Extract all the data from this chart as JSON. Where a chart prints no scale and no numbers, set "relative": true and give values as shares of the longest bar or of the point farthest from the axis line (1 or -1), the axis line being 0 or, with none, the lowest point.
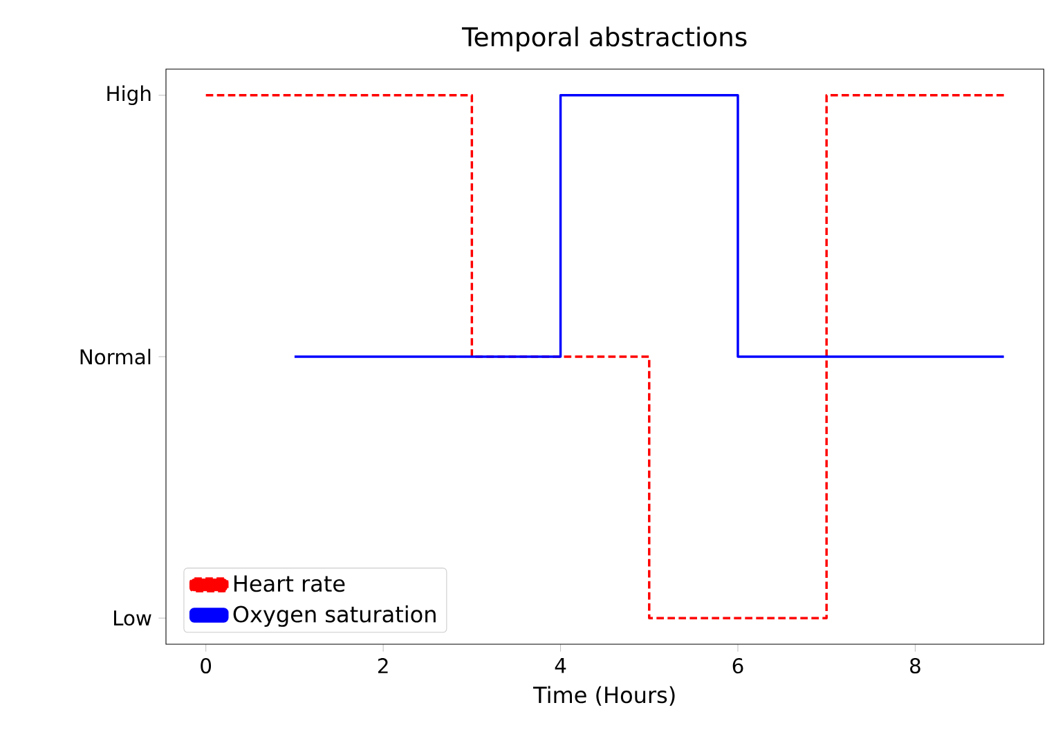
{
  "chart_data": {
    "type": "step",
    "title": "Temporal abstractions",
    "xlabel": "Time (Hours)",
    "xlim": [
      -0.45,
      9.45
    ],
    "xticks": [
      0,
      2,
      4,
      6,
      8
    ],
    "relative": true,
    "y_categories": [
      "High",
      "Normal",
      "Low"
    ],
    "legend": "bottom left",
    "grid": false,
    "series": [
      {
        "name": "Heart rate",
        "color": "#ff0000",
        "line_style": "dashed",
        "x": [
          0,
          3,
          5,
          7,
          9
        ],
        "values": [
          1,
          0.5,
          0,
          1,
          1
        ]
      },
      {
        "name": "Oxygen saturation",
        "color": "#0000ff",
        "line_style": "solid",
        "x": [
          1,
          4,
          6,
          9
        ],
        "values": [
          0.5,
          1,
          0.5,
          0.5
        ]
      }
    ]
  }
}
